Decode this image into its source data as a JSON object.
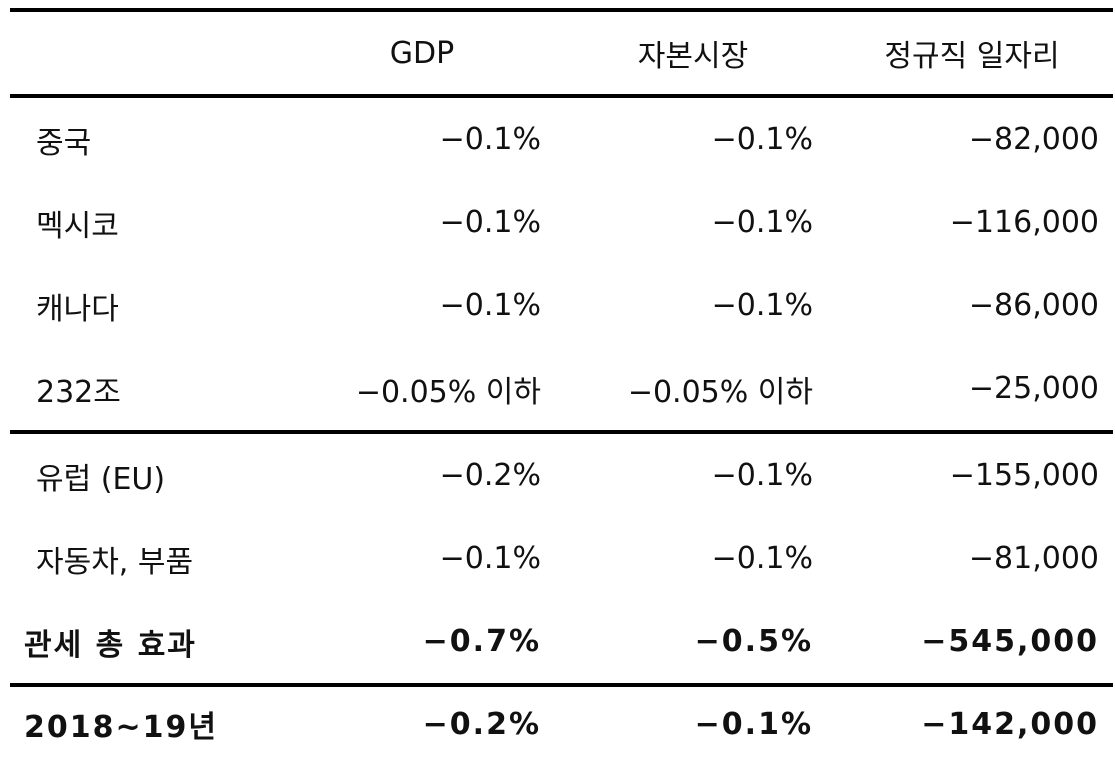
{
  "table": {
    "headers": [
      "",
      "GDP",
      "자본시장",
      "정규직 일자리"
    ],
    "rows": [
      {
        "label": "중국",
        "gdp": "−0.1%",
        "capital": "−0.1%",
        "jobs": "−82,000"
      },
      {
        "label": "멕시코",
        "gdp": "−0.1%",
        "capital": "−0.1%",
        "jobs": "−116,000"
      },
      {
        "label": "캐나다",
        "gdp": "−0.1%",
        "capital": "−0.1%",
        "jobs": "−86,000"
      },
      {
        "label": "232조",
        "gdp": "−0.05% 이하",
        "capital": "−0.05% 이하",
        "jobs": "−25,000"
      },
      {
        "label": "유럽 (EU)",
        "gdp": "−0.2%",
        "capital": "−0.1%",
        "jobs": "−155,000"
      },
      {
        "label": "자동차, 부품",
        "gdp": "−0.1%",
        "capital": "−0.1%",
        "jobs": "−81,000"
      },
      {
        "label": "관세 총 효과",
        "gdp": "−0.7%",
        "capital": "−0.5%",
        "jobs": "−545,000"
      },
      {
        "label": "2018~19년",
        "gdp": "−0.2%",
        "capital": "−0.1%",
        "jobs": "−142,000"
      }
    ]
  }
}
